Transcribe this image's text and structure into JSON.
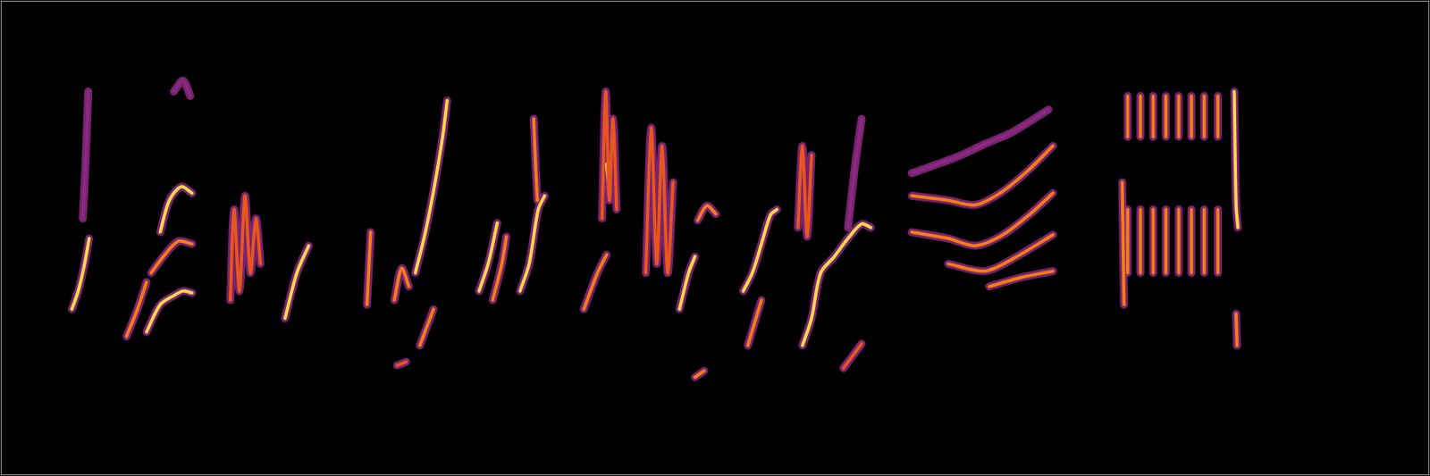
{
  "chart_data": {
    "type": "line",
    "tick_labels": false,
    "grid": false,
    "xlim": [
      0,
      1568
    ],
    "ylim": [
      0,
      523
    ],
    "series": [
      {
        "color": "#ffd84a",
        "x": [
          78,
          85,
          92,
          97
        ],
        "values": [
          183,
          203,
          233,
          261
        ]
      },
      {
        "color": "#8c2981",
        "x": [
          90,
          93,
          96
        ],
        "values": [
          283,
          343,
          423
        ]
      },
      {
        "color": "#f57d15",
        "x": [
          138,
          150,
          160
        ],
        "values": [
          153,
          183,
          213
        ]
      },
      {
        "color": "#ffd84a",
        "x": [
          160,
          175,
          190,
          200,
          210
        ],
        "values": [
          158,
          188,
          198,
          203,
          201
        ]
      },
      {
        "color": "#f57d15",
        "x": [
          165,
          180,
          195,
          210
        ],
        "values": [
          223,
          243,
          258,
          255
        ]
      },
      {
        "color": "#ffd84a",
        "x": [
          175,
          185,
          198,
          210
        ],
        "values": [
          268,
          303,
          318,
          311
        ]
      },
      {
        "color": "#8c2981",
        "x": [
          190,
          200,
          208
        ],
        "values": [
          423,
          435,
          418
        ]
      },
      {
        "color": "#e8561e",
        "x": [
          252,
          256,
          262,
          268,
          274,
          280,
          285
        ],
        "values": [
          193,
          293,
          203,
          308,
          223,
          283,
          233
        ]
      },
      {
        "color": "#ffd84a",
        "x": [
          312,
          325,
          338
        ],
        "values": [
          173,
          223,
          253
        ]
      },
      {
        "color": "#f57d15",
        "x": [
          402,
          404,
          406
        ],
        "values": [
          188,
          228,
          268
        ]
      },
      {
        "color": "#f57d15",
        "x": [
          432,
          440,
          448
        ],
        "values": [
          193,
          228,
          208
        ]
      },
      {
        "color": "#ffd84a",
        "x": [
          455,
          465,
          475,
          485,
          490
        ],
        "values": [
          223,
          263,
          313,
          373,
          413
        ]
      },
      {
        "color": "#f57d15",
        "x": [
          460,
          475
        ],
        "values": [
          143,
          183
        ]
      },
      {
        "color": "#e8561e",
        "x": [
          435,
          445
        ],
        "values": [
          121,
          125
        ]
      },
      {
        "color": "#ffd84a",
        "x": [
          525,
          535,
          545
        ],
        "values": [
          203,
          233,
          278
        ]
      },
      {
        "color": "#f57d15",
        "x": [
          540,
          550,
          555
        ],
        "values": [
          193,
          233,
          263
        ]
      },
      {
        "color": "#ffd84a",
        "x": [
          570,
          580,
          590,
          597
        ],
        "values": [
          203,
          233,
          293,
          308
        ]
      },
      {
        "color": "#f57d15",
        "x": [
          585,
          587,
          589
        ],
        "values": [
          393,
          343,
          303
        ]
      },
      {
        "color": "#e8561e",
        "x": [
          660,
          664,
          668,
          672,
          676
        ],
        "values": [
          283,
          423,
          303,
          393,
          293
        ]
      },
      {
        "color": "#ffd84a",
        "x": [
          665,
          668
        ],
        "values": [
          343,
          313
        ]
      },
      {
        "color": "#f57d15",
        "x": [
          640,
          655,
          665
        ],
        "values": [
          183,
          223,
          243
        ]
      },
      {
        "color": "#e8561e",
        "x": [
          708,
          714,
          720,
          726,
          732,
          738
        ],
        "values": [
          223,
          383,
          233,
          363,
          223,
          323
        ]
      },
      {
        "color": "#ffd84a",
        "x": [
          745,
          755,
          762
        ],
        "values": [
          183,
          223,
          241
        ]
      },
      {
        "color": "#f57d15",
        "x": [
          765,
          775,
          785
        ],
        "values": [
          281,
          297,
          288
        ]
      },
      {
        "color": "#f57d15",
        "x": [
          762,
          772
        ],
        "values": [
          108,
          115
        ]
      },
      {
        "color": "#ffd84a",
        "x": [
          815,
          825,
          835,
          845,
          852
        ],
        "values": [
          203,
          223,
          255,
          287,
          293
        ]
      },
      {
        "color": "#f57d15",
        "x": [
          820,
          835
        ],
        "values": [
          143,
          193
        ]
      },
      {
        "color": "#e8561e",
        "x": [
          875,
          880,
          885,
          890
        ],
        "values": [
          273,
          363,
          263,
          353
        ]
      },
      {
        "color": "#ffd84a",
        "x": [
          880,
          890,
          900,
          915,
          930,
          945,
          955
        ],
        "values": [
          143,
          173,
          223,
          241,
          261,
          277,
          273
        ]
      },
      {
        "color": "#8c2981",
        "x": [
          930,
          938,
          945
        ],
        "values": [
          273,
          343,
          393
        ]
      },
      {
        "color": "#e8561e",
        "x": [
          925,
          945
        ],
        "values": [
          118,
          145
        ]
      },
      {
        "color": "#8c2981",
        "x": [
          1000,
          1050,
          1080,
          1110,
          1150
        ],
        "values": [
          333,
          351,
          365,
          378,
          403
        ]
      },
      {
        "color": "#f57d15",
        "x": [
          1000,
          1040,
          1070,
          1100,
          1130,
          1155
        ],
        "values": [
          308,
          303,
          298,
          313,
          338,
          363
        ]
      },
      {
        "color": "#f57d15",
        "x": [
          1000,
          1040,
          1070,
          1100,
          1130,
          1155
        ],
        "values": [
          268,
          261,
          253,
          265,
          288,
          311
        ]
      },
      {
        "color": "#f57d15",
        "x": [
          1040,
          1080,
          1110,
          1155
        ],
        "values": [
          233,
          225,
          238,
          265
        ]
      },
      {
        "color": "#f57d15",
        "x": [
          1085,
          1120,
          1155
        ],
        "values": [
          208,
          218,
          225
        ]
      },
      {
        "color": "#f57d15",
        "x": [
          1231,
          1233
        ],
        "values": [
          323,
          188
        ]
      },
      {
        "color": "#f57d15",
        "x": [
          1237,
          1237,
          1237,
          1237,
          1237
        ],
        "values": [
          418,
          373,
          null,
          293,
          223
        ]
      },
      {
        "color": "#f57d15",
        "x": [
          1251,
          1251,
          1251,
          1251,
          1251
        ],
        "values": [
          418,
          373,
          null,
          293,
          223
        ]
      },
      {
        "color": "#f57d15",
        "x": [
          1265,
          1265,
          1265,
          1265,
          1265
        ],
        "values": [
          418,
          373,
          null,
          293,
          223
        ]
      },
      {
        "color": "#f57d15",
        "x": [
          1279,
          1279,
          1279,
          1279,
          1279
        ],
        "values": [
          418,
          373,
          null,
          293,
          223
        ]
      },
      {
        "color": "#f57d15",
        "x": [
          1293,
          1293,
          1293,
          1293,
          1293
        ],
        "values": [
          418,
          373,
          null,
          293,
          223
        ]
      },
      {
        "color": "#f57d15",
        "x": [
          1307,
          1307,
          1307,
          1307,
          1307
        ],
        "values": [
          418,
          373,
          null,
          293,
          223
        ]
      },
      {
        "color": "#f57d15",
        "x": [
          1321,
          1321,
          1321,
          1321,
          1321
        ],
        "values": [
          418,
          373,
          null,
          293,
          223
        ]
      },
      {
        "color": "#f57d15",
        "x": [
          1336,
          1336,
          1336,
          1336,
          1336
        ],
        "values": [
          418,
          373,
          null,
          293,
          223
        ]
      },
      {
        "color": "#ffd84a",
        "x": [
          1354,
          1356,
          1358
        ],
        "values": [
          423,
          298,
          273
        ]
      },
      {
        "color": "#f57d15",
        "x": [
          1356,
          1357
        ],
        "values": [
          178,
          143
        ]
      }
    ]
  }
}
